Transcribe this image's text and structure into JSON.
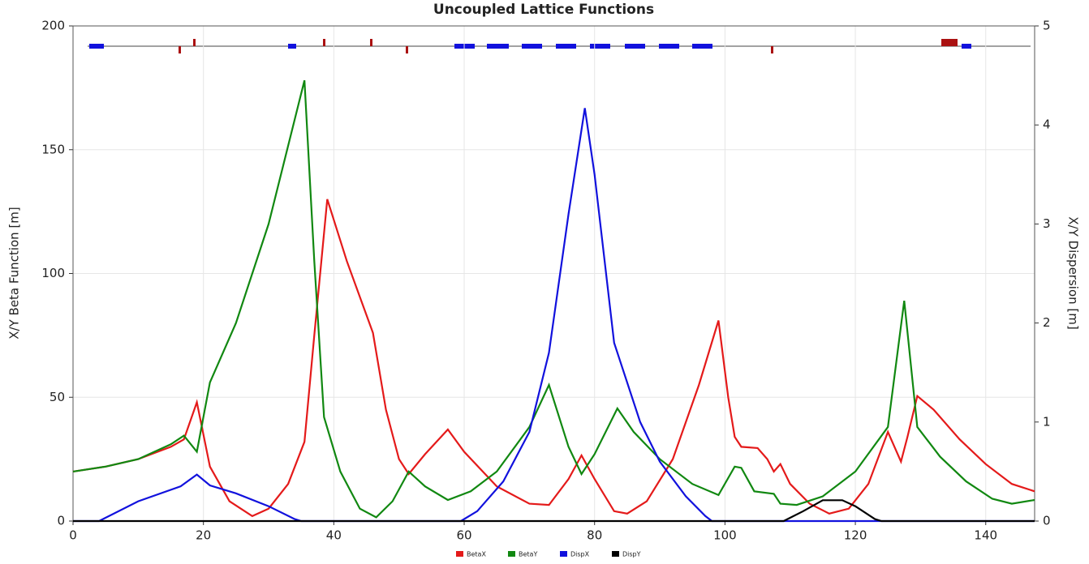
{
  "chart_data": {
    "type": "line",
    "title": "Uncoupled Lattice Functions",
    "y_label": "X/Y Beta Function [m]",
    "y2_label": "X/Y Dispersion [m]",
    "xlim": [
      0,
      147.5
    ],
    "xticks": [
      0,
      20,
      40,
      60,
      80,
      100,
      120,
      140
    ],
    "ylim": [
      0,
      200
    ],
    "yticks": [
      0,
      50,
      100,
      150,
      200
    ],
    "y2lim": [
      0,
      5
    ],
    "y2ticks": [
      0,
      1,
      2,
      3,
      4,
      5
    ],
    "grid": true,
    "legend": "bottom",
    "series": [
      {
        "name": "BetaX",
        "color": "#e41a1a",
        "x": [
          0,
          5,
          10,
          15,
          17,
          19,
          21,
          24,
          27.5,
          30,
          33,
          35.5,
          37,
          39,
          42,
          46,
          48,
          50,
          51.5,
          54,
          57.5,
          60,
          65,
          70,
          73,
          76,
          78,
          80,
          83,
          85,
          88,
          92,
          96,
          99,
          100.5,
          101.5,
          102.5,
          105,
          106.5,
          107.5,
          108.5,
          110,
          113,
          116,
          119,
          122,
          125,
          127,
          128,
          129.5,
          132,
          136,
          140,
          144,
          147.5
        ],
        "values": [
          20,
          22,
          25,
          30,
          33,
          48,
          22,
          8,
          2,
          5,
          15,
          32,
          75,
          130,
          105,
          76,
          45,
          25,
          19,
          27,
          37,
          28,
          14,
          7,
          6.5,
          17,
          26.5,
          17,
          4,
          3,
          8,
          25,
          55,
          81,
          50,
          34,
          30,
          29.5,
          25,
          20,
          23,
          15,
          7,
          3,
          5,
          15,
          36,
          24,
          34,
          50.5,
          45,
          33,
          23,
          15,
          12
        ]
      },
      {
        "name": "BetaY",
        "color": "#118811",
        "x": [
          0,
          5,
          10,
          15,
          17,
          19,
          21,
          25,
          30,
          35.5,
          37,
          38.5,
          41,
          44,
          46.5,
          49,
          51.5,
          54,
          57.5,
          61,
          65,
          70,
          73,
          76,
          78,
          80,
          83.5,
          86,
          90,
          95,
          99,
          101.5,
          102.5,
          104.5,
          107.5,
          108.5,
          111,
          115,
          120,
          125,
          127.5,
          129.5,
          133,
          137,
          141,
          144,
          147.5
        ],
        "values": [
          20,
          22,
          25,
          31,
          34.5,
          28,
          56,
          80,
          120,
          178,
          105,
          42,
          20,
          5,
          1.5,
          8,
          20,
          14,
          8.5,
          12,
          20,
          38,
          55,
          30,
          19,
          27,
          45.5,
          36,
          25,
          15,
          10.5,
          22,
          21.5,
          12,
          11,
          7,
          6.5,
          10,
          20,
          38,
          89,
          38,
          26,
          16,
          9,
          7,
          8.5
        ]
      },
      {
        "name": "DispX",
        "color": "#1111dd",
        "axis": "y2",
        "x": [
          0,
          4,
          10,
          16.5,
          19,
          21,
          25,
          30,
          34,
          35,
          59.5,
          62,
          66,
          70,
          73,
          76,
          78.5,
          80,
          83,
          87,
          90,
          94,
          97,
          98,
          147.5
        ],
        "values": [
          0,
          0,
          0.2,
          0.35,
          0.47,
          0.36,
          0.28,
          0.15,
          0.02,
          0,
          0,
          0.1,
          0.4,
          0.9,
          1.7,
          3.1,
          4.17,
          3.5,
          1.8,
          1.0,
          0.6,
          0.25,
          0.05,
          0,
          0
        ]
      },
      {
        "name": "DispY",
        "color": "#000000",
        "axis": "y2",
        "x": [
          0,
          109,
          112,
          115,
          118,
          120,
          123,
          124,
          147.5
        ],
        "values": [
          0,
          0,
          0.1,
          0.21,
          0.21,
          0.15,
          0.02,
          0,
          0
        ]
      }
    ]
  }
}
